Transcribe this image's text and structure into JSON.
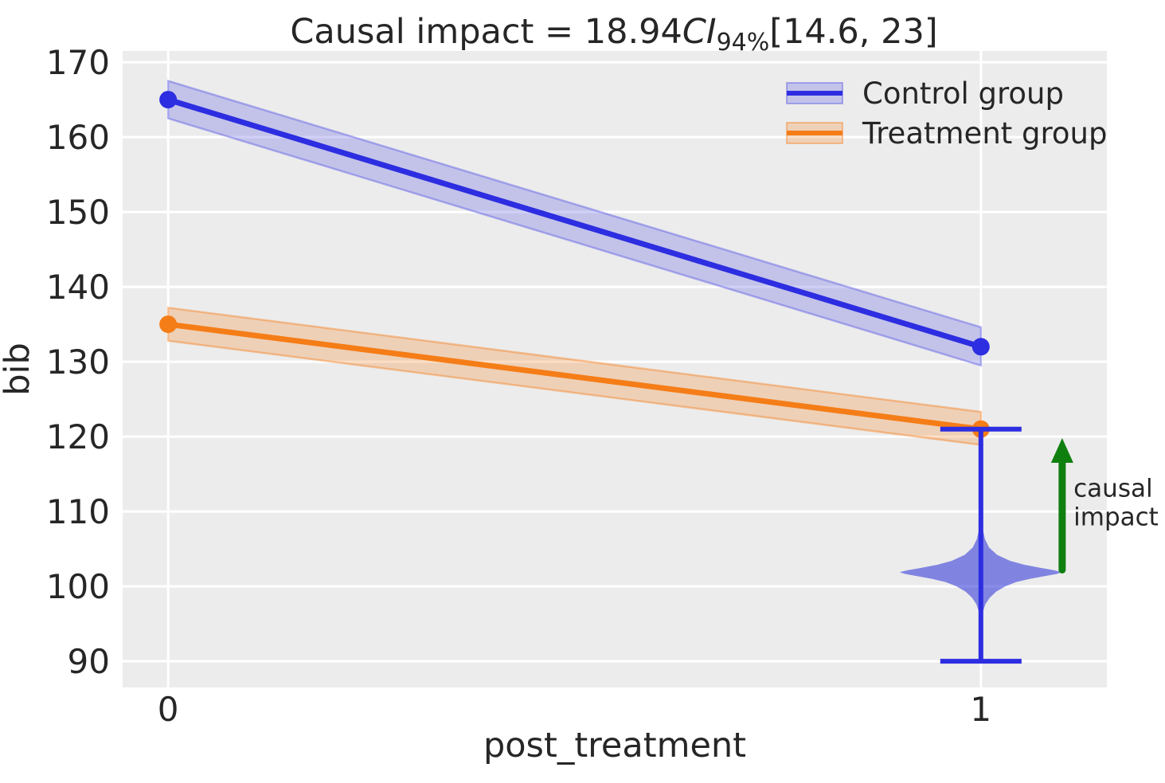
{
  "figure": {
    "background": "#ffffff",
    "axes_background": "#ececec",
    "grid_color": "#ffffff",
    "text_color": "#262626"
  },
  "chart_data": {
    "type": "line",
    "title": {
      "prefix": "Causal impact = 18.94",
      "ci_italic": "CI",
      "ci_subscript": "94%",
      "interval": "[14.6, 23]",
      "full_text": "Causal impact = 18.94 CI94% [14.6, 23]"
    },
    "xlabel": "post_treatment",
    "ylabel": "bib",
    "x": [
      0,
      1
    ],
    "xticks": [
      0,
      1
    ],
    "yticks": [
      90,
      100,
      110,
      120,
      130,
      140,
      150,
      160,
      170
    ],
    "xlim": [
      -0.056,
      1.155
    ],
    "ylim": [
      86.5,
      171.5
    ],
    "grid": true,
    "series": [
      {
        "name": "Control group",
        "color": "#2d2de1",
        "band_fill": "rgba(70,70,228,0.25)",
        "band_edge": "rgba(90,90,230,0.45)",
        "values": [
          165,
          132
        ],
        "ci_low": [
          162.5,
          129.5
        ],
        "ci_high": [
          167.5,
          134.6
        ]
      },
      {
        "name": "Treatment group",
        "color": "#f57d17",
        "band_fill": "rgba(245,125,23,0.25)",
        "band_edge": "rgba(245,125,23,0.42)",
        "values": [
          135,
          121
        ],
        "ci_low": [
          132.8,
          118.9
        ],
        "ci_high": [
          137.2,
          123.3
        ]
      }
    ],
    "violin": {
      "x": 1.0,
      "whisker_low": 90,
      "whisker_high": 121,
      "mode": 102,
      "fill": "rgba(40,48,215,0.55)",
      "line_color": "#2d2de1",
      "max_halfwidth_x": 0.1,
      "cap_halfwidth_x": 0.05,
      "profile": [
        [
          109.0,
          0.01
        ],
        [
          107.5,
          0.025
        ],
        [
          106.3,
          0.05
        ],
        [
          105.2,
          0.1
        ],
        [
          104.2,
          0.2
        ],
        [
          103.4,
          0.36
        ],
        [
          102.9,
          0.53
        ],
        [
          102.5,
          0.72
        ],
        [
          102.15,
          0.9
        ],
        [
          101.9,
          1.0
        ],
        [
          101.65,
          0.93
        ],
        [
          101.35,
          0.78
        ],
        [
          101.0,
          0.6
        ],
        [
          100.55,
          0.43
        ],
        [
          100.0,
          0.3
        ],
        [
          99.3,
          0.19
        ],
        [
          98.5,
          0.11
        ],
        [
          97.6,
          0.055
        ],
        [
          96.6,
          0.025
        ],
        [
          95.3,
          0.01
        ]
      ]
    },
    "annotation": {
      "text_lines": [
        "causal",
        "impact"
      ],
      "color": "#0f7f0f",
      "label_pos": {
        "x": 1.114,
        "y": 112
      },
      "arrow": {
        "x": 1.1,
        "y_from": 102.2,
        "y_to": 119.8
      }
    },
    "legend": {
      "position": "upper right",
      "entries": [
        "Control group",
        "Treatment group"
      ]
    }
  }
}
